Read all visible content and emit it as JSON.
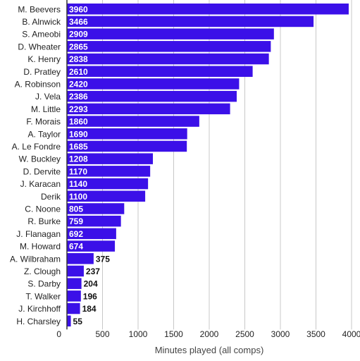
{
  "chart_data": {
    "type": "bar",
    "orientation": "horizontal",
    "categories": [
      "M. Beevers",
      "B. Alnwick",
      "S. Ameobi",
      "D. Wheater",
      "K. Henry",
      "D. Pratley",
      "A. Robinson",
      "J. Vela",
      "M. Little",
      "F. Morais",
      "A. Taylor",
      "A. Le Fondre",
      "W. Buckley",
      "D. Dervite",
      "J. Karacan",
      "Derik",
      "C. Noone",
      "R. Burke",
      "J. Flanagan",
      "M. Howard",
      "A. Wilbraham",
      "Z. Clough",
      "S. Darby",
      "T. Walker",
      "J. Kirchhoff",
      "H. Charsley"
    ],
    "values": [
      3960,
      3466,
      2909,
      2865,
      2838,
      2610,
      2420,
      2386,
      2293,
      1860,
      1690,
      1685,
      1208,
      1170,
      1140,
      1100,
      805,
      759,
      692,
      674,
      375,
      237,
      204,
      196,
      184,
      55
    ],
    "xlabel": "Minutes played (all comps)",
    "ylabel": "",
    "title": "",
    "xlim": [
      0,
      4000
    ],
    "xticks": [
      0,
      500,
      1000,
      1500,
      2000,
      2500,
      3000,
      3500,
      4000
    ],
    "grid": true,
    "bar_color": "#3b10e8"
  }
}
